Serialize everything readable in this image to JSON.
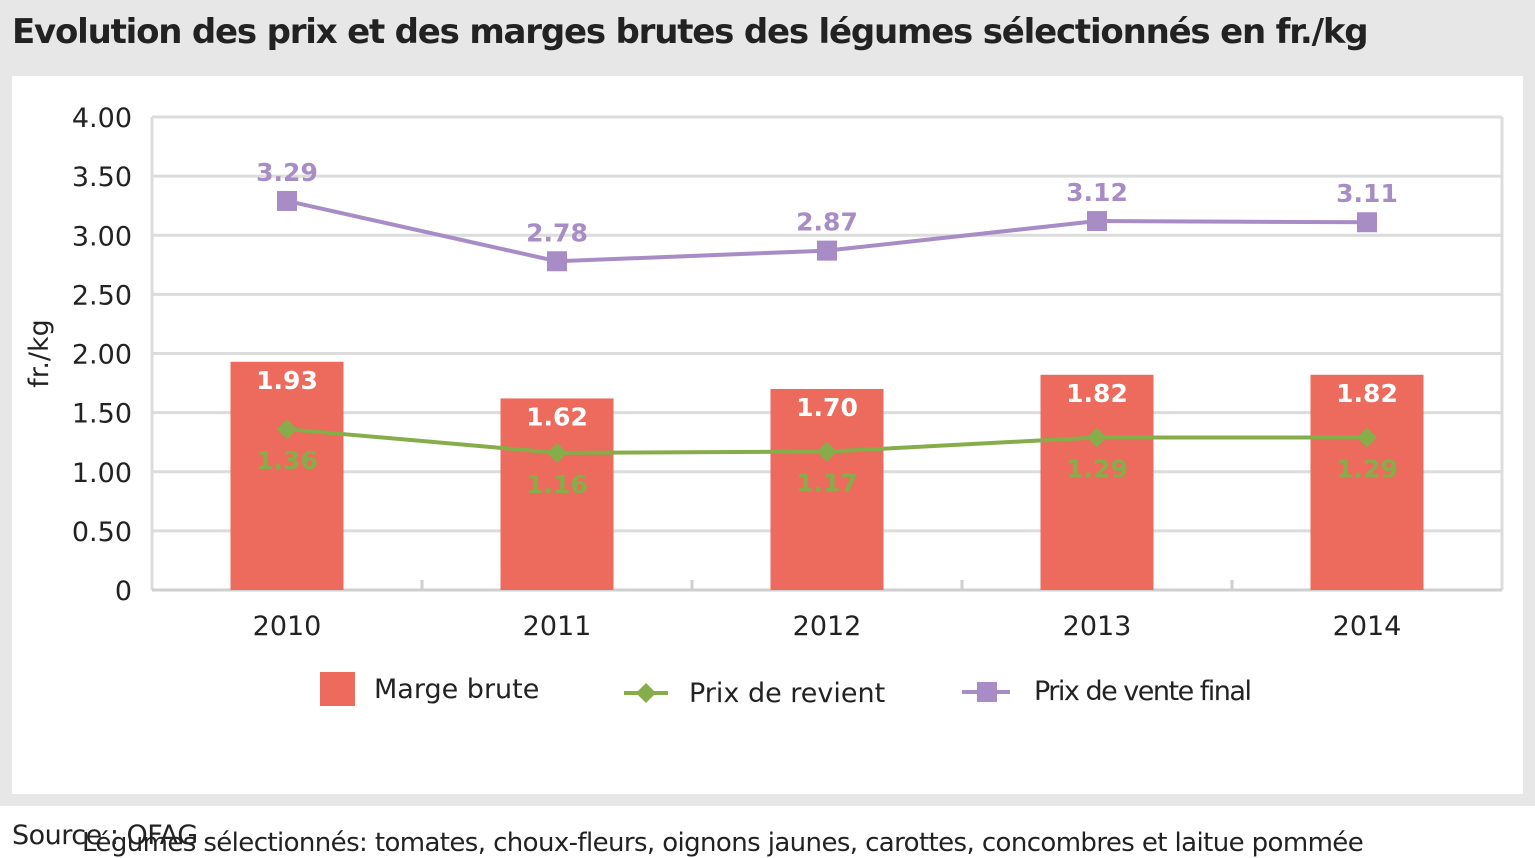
{
  "title": "Evolution des prix et des marges brutes des légumes sélectionnés en fr./kg",
  "note": "Légumes sélectionnés: tomates, choux-fleurs, oignons  jaunes, carottes, concombres et laitue pommée",
  "source": "Source : OFAG",
  "colors": {
    "bar": "#ec6b5d",
    "cost_line": "#86ad4a",
    "price_line": "#a88cc6",
    "grid": "#dcdcdc",
    "bar_label": "#ffffff"
  },
  "chart_data": {
    "type": "bar",
    "categories": [
      "2010",
      "2011",
      "2012",
      "2013",
      "2014"
    ],
    "ylabel": "fr./kg",
    "xlabel": "",
    "ylim": [
      0,
      4
    ],
    "yticks": [
      "0",
      "0.50",
      "1.00",
      "1.50",
      "2.00",
      "2.50",
      "3.00",
      "3.50",
      "4.00"
    ],
    "grid": true,
    "legend_position": "bottom",
    "series": [
      {
        "name": "Marge brute",
        "kind": "bar",
        "values": [
          1.93,
          1.62,
          1.7,
          1.82,
          1.82
        ],
        "labels": [
          "1.93",
          "1.62",
          "1.70",
          "1.82",
          "1.82"
        ]
      },
      {
        "name": "Prix de revient",
        "kind": "line",
        "marker": "diamond",
        "values": [
          1.36,
          1.16,
          1.17,
          1.29,
          1.29
        ],
        "labels": [
          "1.36",
          "1.16",
          "1.17",
          "1.29",
          "1.29"
        ]
      },
      {
        "name": "Prix de vente final",
        "kind": "line",
        "marker": "square",
        "values": [
          3.29,
          2.78,
          2.87,
          3.12,
          3.11
        ],
        "labels": [
          "3.29",
          "2.78",
          "2.87",
          "3.12",
          "3.11"
        ]
      }
    ]
  }
}
